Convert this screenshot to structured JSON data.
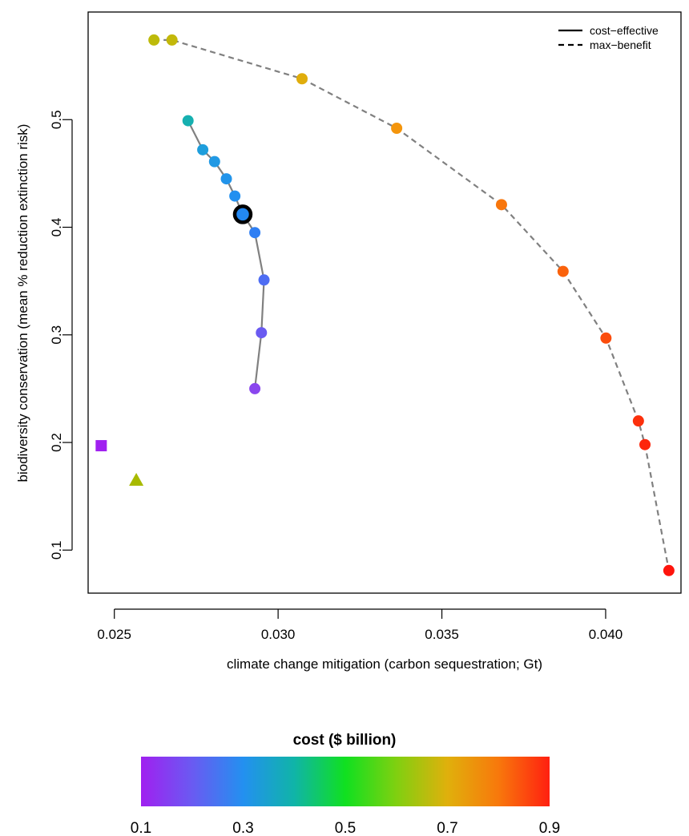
{
  "chart_data": {
    "type": "scatter",
    "xlabel": "climate change mitigation (carbon sequestration; Gt)",
    "ylabel": "biodiversity conservation (mean % reduction extinction risk)",
    "xlim": [
      0.0242,
      0.0423
    ],
    "ylim": [
      0.06,
      0.6
    ],
    "x_ticks": [
      0.025,
      0.03,
      0.035,
      0.04
    ],
    "x_tick_labels": [
      "0.025",
      "0.030",
      "0.035",
      "0.040"
    ],
    "y_ticks": [
      0.1,
      0.2,
      0.3,
      0.4,
      0.5
    ],
    "y_tick_labels": [
      "0.1",
      "0.2",
      "0.3",
      "0.4",
      "0.5"
    ],
    "legend": {
      "position": "top-right",
      "entries": [
        {
          "label": "cost−effective",
          "line_style": "solid"
        },
        {
          "label": "max−benefit",
          "line_style": "dashed"
        }
      ]
    },
    "series": [
      {
        "line_style": "solid",
        "line_color": "#808080",
        "points": [
          {
            "x": 0.02725,
            "y": 0.499,
            "color": "#16B0B0"
          },
          {
            "x": 0.0277,
            "y": 0.472,
            "color": "#1E9EDC"
          },
          {
            "x": 0.02806,
            "y": 0.461,
            "color": "#2199E4"
          },
          {
            "x": 0.02842,
            "y": 0.445,
            "color": "#2294EA"
          },
          {
            "x": 0.02868,
            "y": 0.429,
            "color": "#2390F0"
          },
          {
            "x": 0.02892,
            "y": 0.412,
            "color": "#2388F2",
            "highlighted": true
          },
          {
            "x": 0.02929,
            "y": 0.395,
            "color": "#2F7FF3"
          },
          {
            "x": 0.02957,
            "y": 0.351,
            "color": "#4E6DF3"
          },
          {
            "x": 0.02949,
            "y": 0.302,
            "color": "#6A5AF1"
          },
          {
            "x": 0.02929,
            "y": 0.25,
            "color": "#8A46EE"
          }
        ]
      },
      {
        "line_style": "dashed",
        "line_color": "#808080",
        "points": [
          {
            "x": 0.02621,
            "y": 0.574,
            "color": "#BDBA0A"
          },
          {
            "x": 0.02676,
            "y": 0.574,
            "color": "#C3B80A"
          },
          {
            "x": 0.03073,
            "y": 0.538,
            "color": "#E0AD0C"
          },
          {
            "x": 0.03362,
            "y": 0.492,
            "color": "#F4950C"
          },
          {
            "x": 0.03682,
            "y": 0.421,
            "color": "#F8760C"
          },
          {
            "x": 0.0387,
            "y": 0.359,
            "color": "#FA620C"
          },
          {
            "x": 0.04001,
            "y": 0.297,
            "color": "#FB4C0C"
          },
          {
            "x": 0.041,
            "y": 0.22,
            "color": "#FC300C"
          },
          {
            "x": 0.0412,
            "y": 0.198,
            "color": "#FD260C"
          },
          {
            "x": 0.04193,
            "y": 0.081,
            "color": "#FE140C"
          }
        ]
      }
    ],
    "extra_points": [
      {
        "x": 0.0246,
        "y": 0.197,
        "shape": "square",
        "color": "#A020F0"
      },
      {
        "x": 0.02567,
        "y": 0.165,
        "shape": "triangle",
        "color": "#A8BA00"
      }
    ],
    "colorbar": {
      "title": "cost ($ billion)",
      "ticks": [
        0.1,
        0.3,
        0.5,
        0.7,
        0.9
      ],
      "tick_labels": [
        "0.1",
        "0.3",
        "0.5",
        "0.7",
        "0.9"
      ],
      "range": [
        0.1,
        0.9
      ],
      "gradient_colors": [
        "#A020F0",
        "#6A5AF2",
        "#2390F0",
        "#10B4A8",
        "#10E020",
        "#80D010",
        "#E0B00C",
        "#F8780C",
        "#FF2010"
      ]
    }
  }
}
